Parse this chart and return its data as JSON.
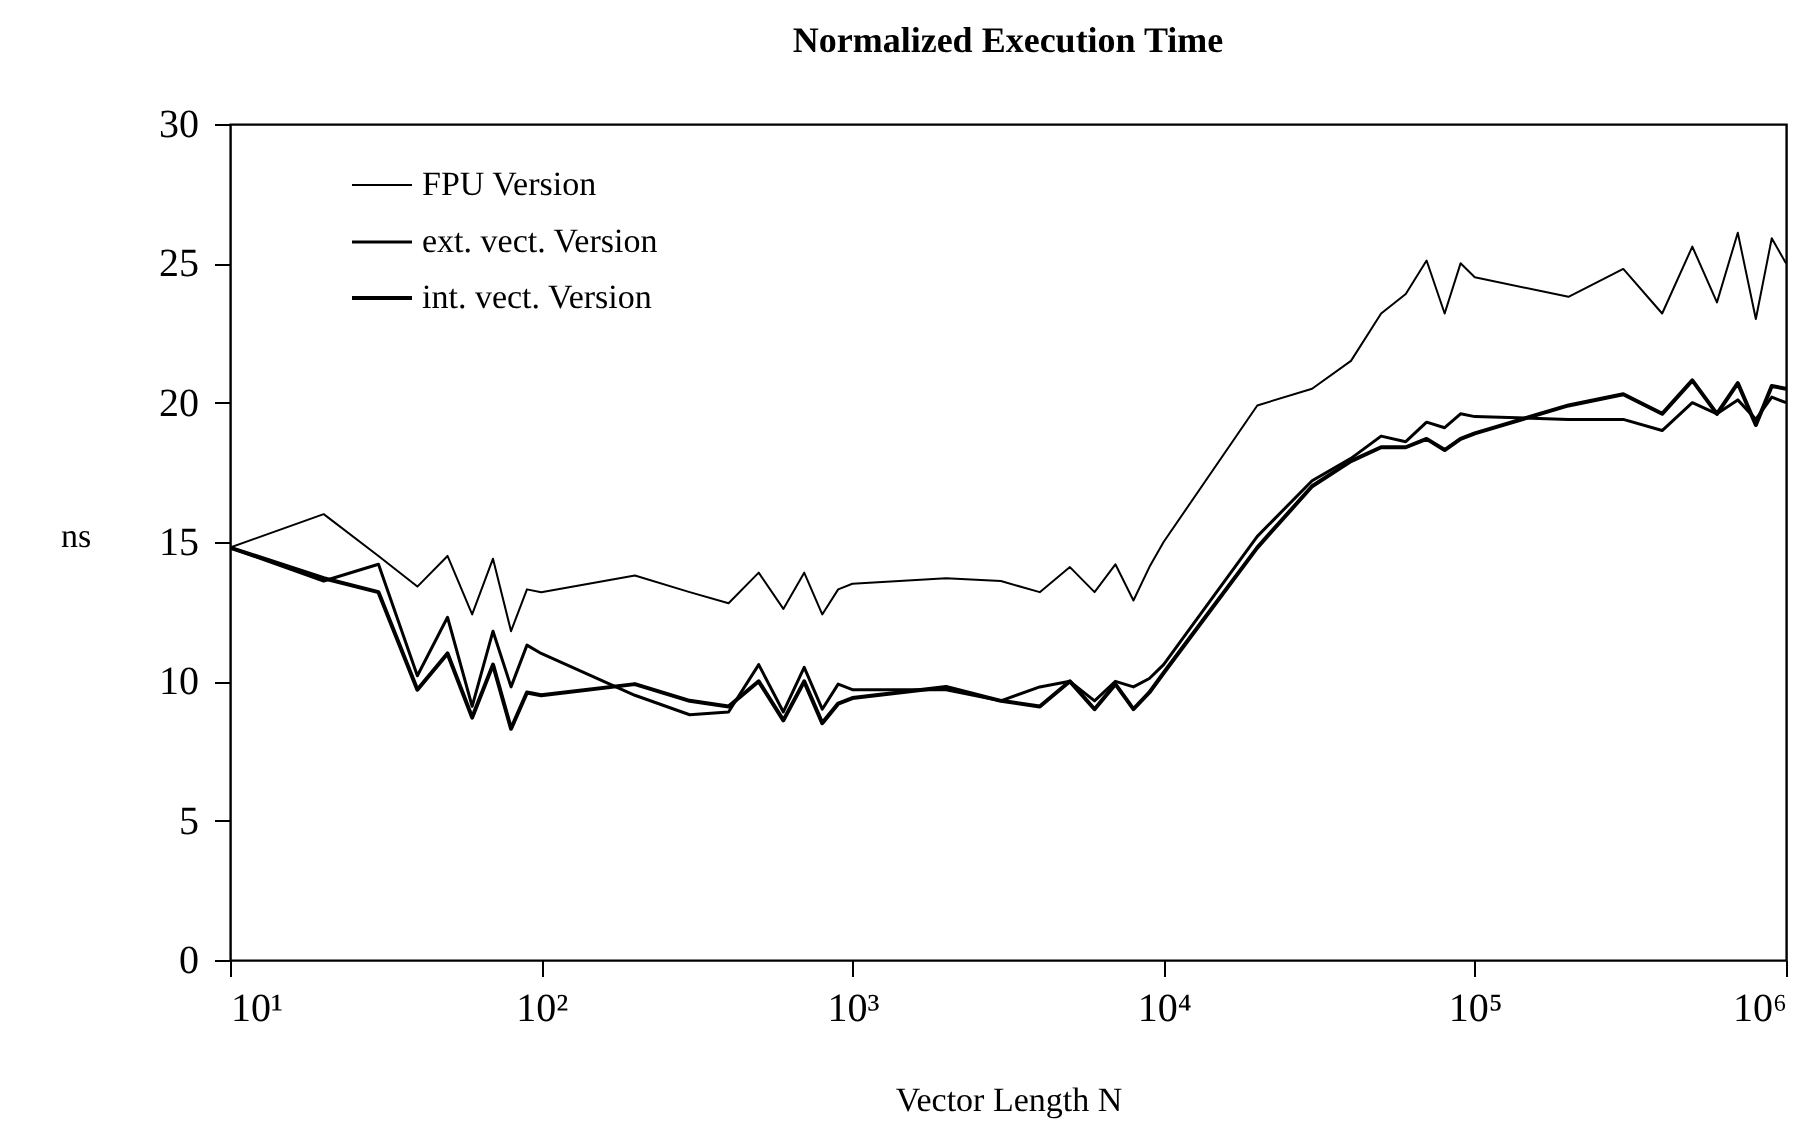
{
  "chart_data": {
    "type": "line",
    "title": "Normalized Execution Time",
    "xlabel": "Vector Length N",
    "ylabel": "ns",
    "x": [
      10,
      20,
      30,
      40,
      50,
      60,
      70,
      80,
      90,
      100,
      200,
      300,
      400,
      500,
      600,
      700,
      800,
      900,
      1000,
      2000,
      3000,
      4000,
      5000,
      6000,
      7000,
      8000,
      9000,
      10000,
      20000,
      30000,
      40000,
      50000,
      60000,
      70000,
      80000,
      90000,
      100000,
      200000,
      300000,
      400000,
      500000,
      600000,
      700000,
      800000,
      900000,
      1000000
    ],
    "series": [
      {
        "name": "FPU Version",
        "color": "#000000",
        "values": [
          14.8,
          16.0,
          14.5,
          13.4,
          14.5,
          12.4,
          14.4,
          11.8,
          13.3,
          13.2,
          13.8,
          13.2,
          12.8,
          13.9,
          12.6,
          13.9,
          12.4,
          13.3,
          13.5,
          13.7,
          13.6,
          13.2,
          14.1,
          13.2,
          14.2,
          12.9,
          14.1,
          15.0,
          19.9,
          20.5,
          21.5,
          23.2,
          23.9,
          25.1,
          23.2,
          25.0,
          24.5,
          23.8,
          24.8,
          23.2,
          25.6,
          23.6,
          26.1,
          23.0,
          25.9,
          25.0
        ]
      },
      {
        "name": "ext. vect. Version",
        "color": "#000000",
        "values": [
          14.8,
          13.6,
          14.2,
          10.2,
          12.3,
          9.1,
          11.8,
          9.8,
          11.3,
          11.0,
          9.5,
          8.8,
          8.9,
          10.6,
          8.9,
          10.5,
          9.0,
          9.9,
          9.7,
          9.7,
          9.3,
          9.8,
          10.0,
          9.3,
          10.0,
          9.8,
          10.1,
          10.6,
          15.2,
          17.2,
          18.0,
          18.8,
          18.6,
          19.3,
          19.1,
          19.6,
          19.5,
          19.4,
          19.4,
          19.0,
          20.0,
          19.6,
          20.1,
          19.4,
          20.2,
          20.0
        ]
      },
      {
        "name": "int. vect. Version",
        "color": "#000000",
        "values": [
          14.8,
          13.7,
          13.2,
          9.7,
          11.0,
          8.7,
          10.6,
          8.3,
          9.6,
          9.5,
          9.9,
          9.3,
          9.1,
          10.0,
          8.6,
          10.0,
          8.5,
          9.2,
          9.4,
          9.8,
          9.3,
          9.1,
          10.0,
          9.0,
          9.9,
          9.0,
          9.6,
          10.3,
          14.8,
          17.0,
          17.9,
          18.4,
          18.4,
          18.7,
          18.3,
          18.7,
          18.9,
          19.9,
          20.3,
          19.6,
          20.8,
          19.6,
          20.7,
          19.2,
          20.6,
          20.5
        ]
      }
    ],
    "log": "x",
    "xlim": [
      10,
      1000000
    ],
    "xticks": [
      {
        "value": 10,
        "label": "10¹"
      },
      {
        "value": 100,
        "label": "10²"
      },
      {
        "value": 1000,
        "label": "10³"
      },
      {
        "value": 10000,
        "label": "10⁴"
      },
      {
        "value": 100000,
        "label": "10⁵"
      },
      {
        "value": 1000000,
        "label": "10⁶"
      }
    ],
    "ylim": [
      0,
      30
    ],
    "yticks": [
      0,
      5,
      10,
      15,
      20,
      25,
      30
    ],
    "legend": "top left",
    "grid": false,
    "marker": "none",
    "line_style": "solid"
  }
}
